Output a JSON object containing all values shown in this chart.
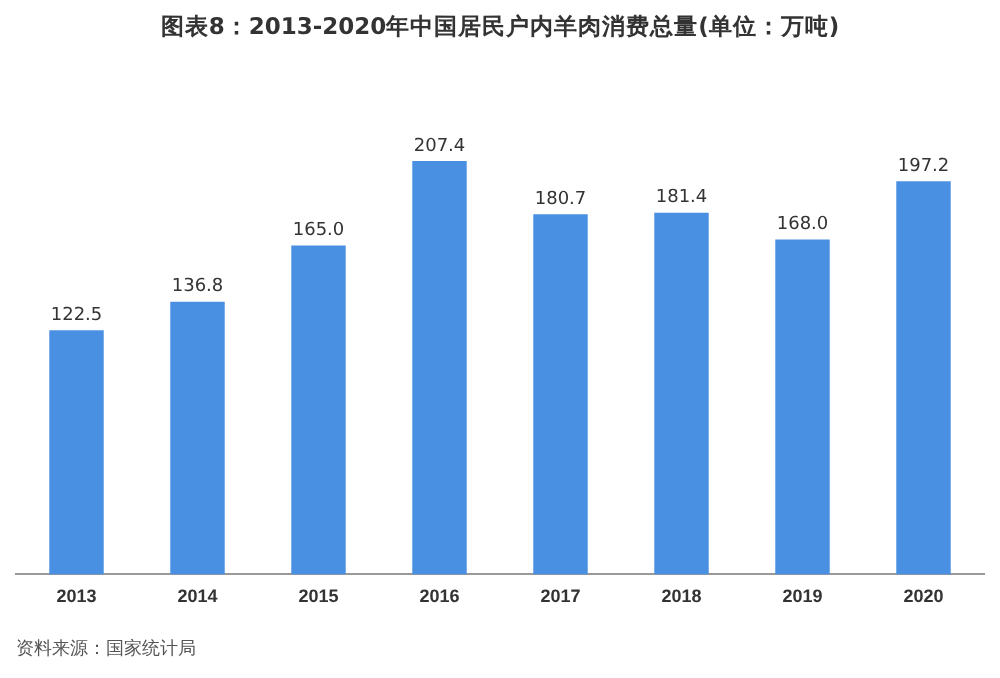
{
  "chart_data": {
    "type": "bar",
    "title": "图表8：2013-2020年中国居民户内羊肉消费总量(单位：万吨)",
    "categories": [
      "2013",
      "2014",
      "2015",
      "2016",
      "2017",
      "2018",
      "2019",
      "2020"
    ],
    "values": [
      122.5,
      136.8,
      165.0,
      207.4,
      180.7,
      181.4,
      168.0,
      197.2
    ],
    "value_labels": [
      "122.5",
      "136.8",
      "165.0",
      "207.4",
      "180.7",
      "181.4",
      "168.0",
      "197.2"
    ],
    "color": "#4a90e2",
    "grid": false,
    "legend": false,
    "tick_labels": "x",
    "annotations": [
      "资料来源：国家统计局"
    ]
  }
}
